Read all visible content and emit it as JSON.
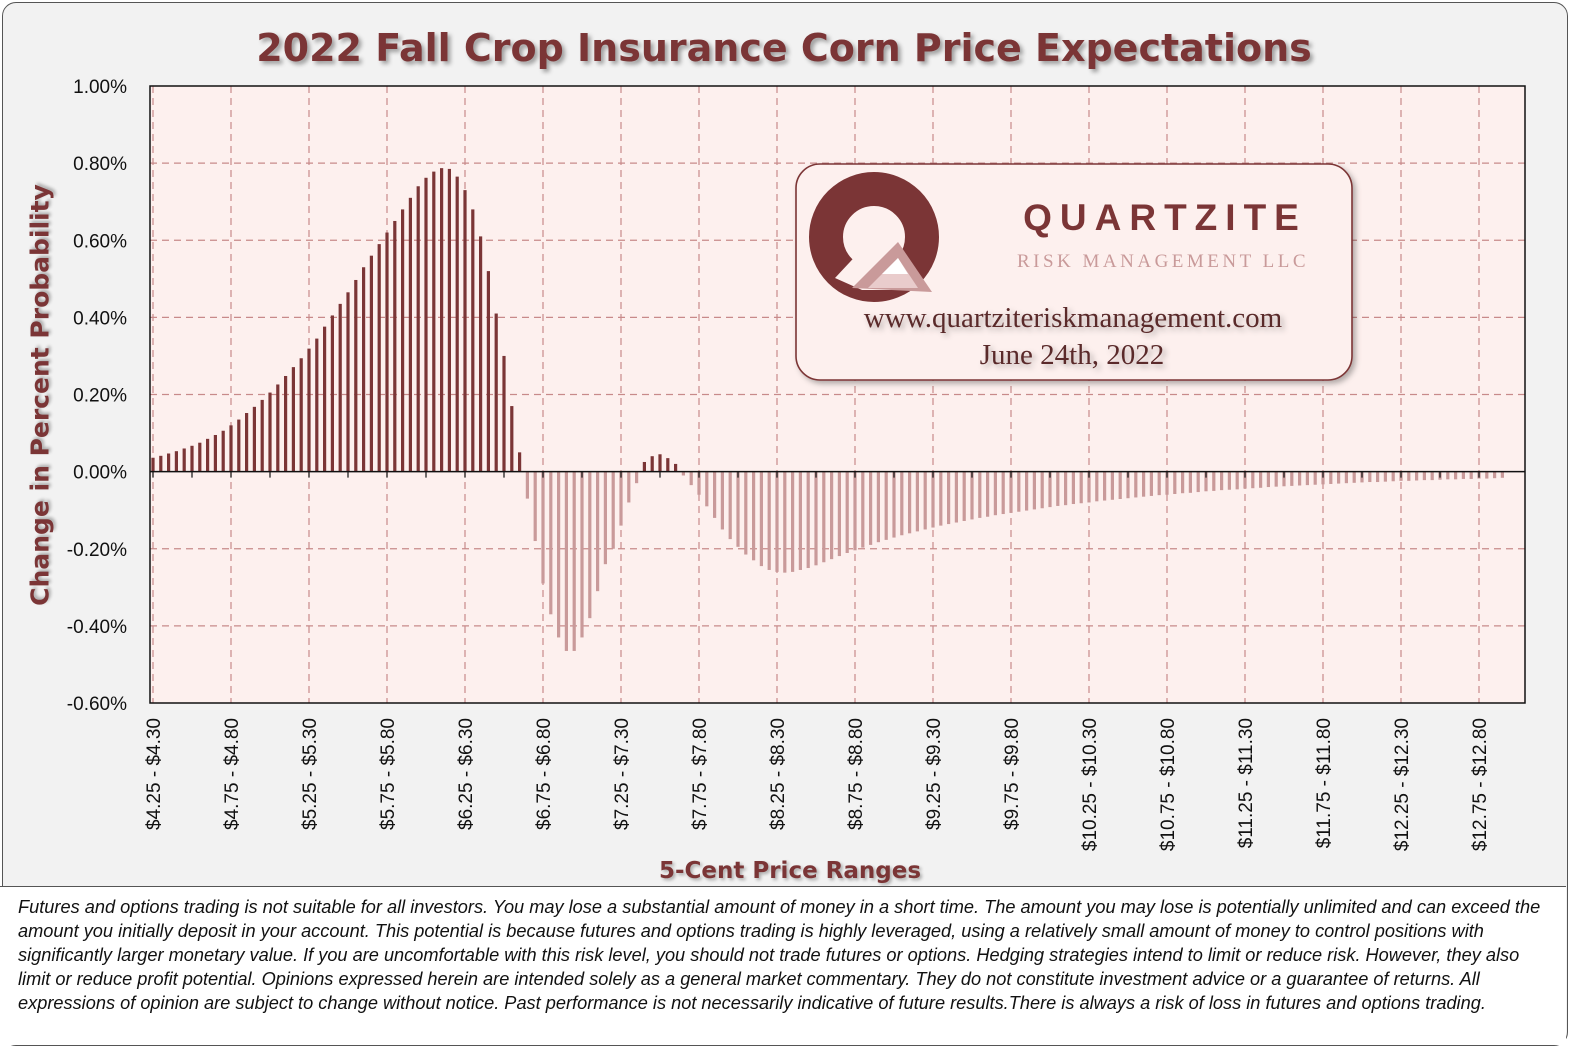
{
  "title": "2022 Fall Crop Insurance Corn Price Expectations",
  "colors": {
    "accent": "#7b3536",
    "plot_bg": "#fdf0ee",
    "negative_bar": "#c99a9a",
    "grid": "#c88a8a"
  },
  "logo": {
    "name": "QUARTZITE",
    "subtitle": "RISK MANAGEMENT LLC",
    "website": "www.quartziteriskmanagement.com",
    "date": "June 24th, 2022"
  },
  "disclaimer": "Futures and options trading is not suitable for all investors. You may lose a substantial amount of money in a short time.  The amount you may lose is potentially unlimited and can exceed the amount you initially deposit in your account. This potential is because futures and options trading is highly leveraged, using a relatively small amount of money to control positions with significantly larger monetary value. If you are uncomfortable with this risk level, you should not trade futures or options. Hedging strategies intend to limit or reduce risk. However, they also limit or reduce profit potential. Opinions expressed herein are intended solely as a general market commentary. They do not constitute investment advice or a guarantee of returns. All expressions of opinion are subject to change without notice. Past performance is not necessarily indicative of future results.There is always a risk of loss in futures and options trading.",
  "chart_data": {
    "type": "bar",
    "title": "2022 Fall Crop Insurance Corn Price Expectations",
    "xlabel": "5-Cent Price Ranges",
    "ylabel": "Change in Percent Probability",
    "ylim": [
      -0.6,
      1.0
    ],
    "yticks": [
      "1.00%",
      "0.80%",
      "0.60%",
      "0.40%",
      "0.20%",
      "0.00%",
      "-0.20%",
      "-0.40%",
      "-0.60%"
    ],
    "ytick_values": [
      1.0,
      0.8,
      0.6,
      0.4,
      0.2,
      0.0,
      -0.2,
      -0.4,
      -0.6
    ],
    "xtick_labels": [
      "$4.25 - $4.30",
      "$4.75 - $4.80",
      "$5.25 - $5.30",
      "$5.75 - $5.80",
      "$6.25 - $6.30",
      "$6.75 - $6.80",
      "$7.25 - $7.30",
      "$7.75 - $7.80",
      "$8.25 - $8.30",
      "$8.75 - $8.80",
      "$9.25 - $9.30",
      "$9.75 - $9.80",
      "$10.25 - $10.30",
      "$10.75 - $10.80",
      "$11.25 - $11.30",
      "$11.75 - $11.80",
      "$12.25 - $12.30",
      "$12.75 - $12.80"
    ],
    "x_start": 4.25,
    "bin_width": 0.05,
    "grid": true,
    "values": [
      0.036,
      0.041,
      0.047,
      0.053,
      0.06,
      0.067,
      0.075,
      0.085,
      0.095,
      0.106,
      0.12,
      0.135,
      0.152,
      0.168,
      0.186,
      0.205,
      0.226,
      0.248,
      0.271,
      0.294,
      0.319,
      0.345,
      0.376,
      0.405,
      0.435,
      0.465,
      0.497,
      0.53,
      0.56,
      0.59,
      0.62,
      0.65,
      0.68,
      0.71,
      0.74,
      0.762,
      0.778,
      0.787,
      0.785,
      0.765,
      0.73,
      0.68,
      0.61,
      0.52,
      0.41,
      0.3,
      0.17,
      0.05,
      -0.07,
      -0.18,
      -0.29,
      -0.37,
      -0.43,
      -0.465,
      -0.465,
      -0.43,
      -0.38,
      -0.31,
      -0.24,
      -0.2,
      -0.14,
      -0.08,
      -0.03,
      0.025,
      0.04,
      0.045,
      0.035,
      0.02,
      -0.01,
      -0.035,
      -0.06,
      -0.09,
      -0.12,
      -0.15,
      -0.175,
      -0.195,
      -0.215,
      -0.23,
      -0.245,
      -0.255,
      -0.26,
      -0.262,
      -0.26,
      -0.255,
      -0.25,
      -0.243,
      -0.235,
      -0.227,
      -0.219,
      -0.211,
      -0.204,
      -0.197,
      -0.19,
      -0.183,
      -0.177,
      -0.171,
      -0.165,
      -0.16,
      -0.155,
      -0.15,
      -0.145,
      -0.14,
      -0.136,
      -0.132,
      -0.128,
      -0.124,
      -0.12,
      -0.117,
      -0.113,
      -0.11,
      -0.107,
      -0.104,
      -0.101,
      -0.098,
      -0.095,
      -0.092,
      -0.089,
      -0.087,
      -0.084,
      -0.082,
      -0.08,
      -0.077,
      -0.075,
      -0.073,
      -0.071,
      -0.069,
      -0.067,
      -0.065,
      -0.063,
      -0.061,
      -0.06,
      -0.058,
      -0.056,
      -0.055,
      -0.053,
      -0.051,
      -0.05,
      -0.048,
      -0.047,
      -0.046,
      -0.044,
      -0.043,
      -0.042,
      -0.04,
      -0.039,
      -0.038,
      -0.037,
      -0.036,
      -0.035,
      -0.034,
      -0.033,
      -0.032,
      -0.031,
      -0.03,
      -0.029,
      -0.028,
      -0.027,
      -0.027,
      -0.026,
      -0.025,
      -0.024,
      -0.024,
      -0.023,
      -0.022,
      -0.022,
      -0.021,
      -0.02,
      -0.02,
      -0.019,
      -0.019,
      -0.018,
      -0.018,
      -0.017,
      -0.016
    ]
  }
}
